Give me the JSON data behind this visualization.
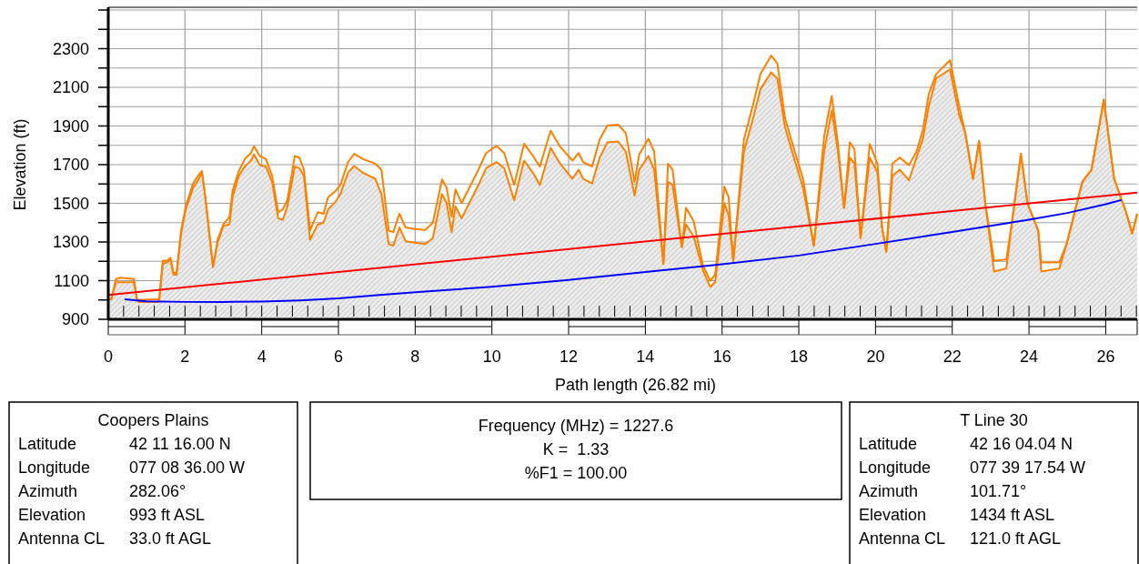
{
  "chart_data": {
    "type": "line",
    "xlabel": "Path length (26.82 mi)",
    "ylabel": "Elevation (ft)",
    "xlim": [
      0,
      26.82
    ],
    "ylim": [
      900,
      2500
    ],
    "xticks": [
      0,
      2,
      4,
      6,
      8,
      10,
      12,
      14,
      16,
      18,
      20,
      22,
      24,
      26
    ],
    "yticks": [
      900,
      {
        "value": 1000,
        "label": null
      },
      1100,
      {
        "value": 1200,
        "label": null
      },
      1300,
      {
        "value": 1400,
        "label": null
      },
      1500,
      {
        "value": 1600,
        "label": null
      },
      1700,
      {
        "value": 1800,
        "label": null
      },
      1900,
      {
        "value": 2000,
        "label": null
      },
      2100,
      {
        "value": 2200,
        "label": null
      },
      2300,
      {
        "value": 2400,
        "label": null
      },
      {
        "value": 2500,
        "label": null
      }
    ],
    "grid": true,
    "marker": "none",
    "line_style": "solid",
    "x": [
      0,
      0.08,
      0.2,
      0.32,
      0.67,
      0.75,
      0.79,
      1.3,
      1.33,
      1.42,
      1.54,
      1.62,
      1.7,
      1.78,
      1.9,
      2.02,
      2.21,
      2.37,
      2.44,
      2.53,
      2.73,
      2.85,
      3.0,
      3.16,
      3.24,
      3.4,
      3.56,
      3.72,
      3.8,
      3.95,
      4.11,
      4.27,
      4.43,
      4.55,
      4.67,
      4.86,
      4.98,
      5.1,
      5.26,
      5.46,
      5.61,
      5.73,
      5.93,
      6.05,
      6.25,
      6.41,
      6.64,
      6.96,
      7.12,
      7.31,
      7.43,
      7.59,
      7.75,
      7.99,
      8.26,
      8.46,
      8.7,
      8.82,
      8.95,
      9.05,
      9.21,
      9.41,
      9.65,
      9.85,
      10.12,
      10.32,
      10.58,
      10.84,
      11.07,
      11.25,
      11.53,
      11.78,
      12.1,
      12.26,
      12.38,
      12.61,
      12.81,
      13.01,
      13.29,
      13.49,
      13.72,
      13.84,
      14.08,
      14.23,
      14.47,
      14.59,
      14.71,
      14.95,
      15.06,
      15.26,
      15.5,
      15.69,
      15.82,
      16.06,
      16.17,
      16.29,
      16.57,
      16.81,
      17.0,
      17.28,
      17.44,
      17.64,
      17.87,
      18.11,
      18.39,
      18.66,
      18.86,
      19.02,
      19.18,
      19.33,
      19.45,
      19.61,
      19.85,
      20.05,
      20.17,
      20.28,
      20.44,
      20.63,
      20.87,
      21.07,
      21.23,
      21.39,
      21.58,
      21.94,
      22.18,
      22.34,
      22.54,
      22.7,
      22.86,
      23.09,
      23.41,
      23.57,
      23.79,
      23.96,
      24.24,
      24.32,
      24.79,
      24.99,
      25.39,
      25.63,
      25.95,
      26.22,
      26.53,
      26.69,
      26.82
    ],
    "series": [
      {
        "type": "area",
        "color": "#ff8000",
        "values": [
          1005,
          1005,
          1092,
          1092,
          1092,
          997,
          990,
          990,
          1000,
          1186,
          1195,
          1210,
          1131,
          1131,
          1344,
          1469,
          1580,
          1627,
          1666,
          1532,
          1170,
          1296,
          1383,
          1391,
          1532,
          1642,
          1690,
          1721,
          1753,
          1698,
          1690,
          1611,
          1422,
          1414,
          1485,
          1690,
          1682,
          1642,
          1312,
          1391,
          1399,
          1469,
          1509,
          1548,
          1658,
          1693,
          1658,
          1627,
          1548,
          1289,
          1281,
          1375,
          1304,
          1296,
          1289,
          1320,
          1548,
          1501,
          1351,
          1485,
          1422,
          1501,
          1595,
          1682,
          1713,
          1682,
          1517,
          1721,
          1658,
          1595,
          1787,
          1705,
          1627,
          1674,
          1627,
          1603,
          1737,
          1815,
          1820,
          1768,
          1540,
          1674,
          1745,
          1674,
          1186,
          1611,
          1595,
          1273,
          1391,
          1328,
          1155,
          1068,
          1092,
          1501,
          1438,
          1202,
          1768,
          1941,
          2091,
          2177,
          2146,
          1894,
          1737,
          1580,
          1281,
          1768,
          1981,
          1768,
          1477,
          1737,
          1705,
          1320,
          1737,
          1658,
          1375,
          1249,
          1642,
          1674,
          1619,
          1737,
          1831,
          2004,
          2146,
          2193,
          1957,
          1863,
          1627,
          1823,
          1501,
          1147,
          1163,
          1422,
          1756,
          1501,
          1359,
          1147,
          1163,
          1296,
          1611,
          1674,
          2036,
          1627,
          1454,
          1344,
          1446
        ]
      },
      {
        "color": "#ff8000",
        "values": [
          1005,
          1005,
          1108,
          1115,
          1108,
          1005,
          1000,
          1005,
          1010,
          1202,
          1205,
          1218,
          1140,
          1140,
          1360,
          1485,
          1603,
          1650,
          1666,
          1532,
          1170,
          1312,
          1391,
          1430,
          1564,
          1666,
          1729,
          1760,
          1795,
          1745,
          1729,
          1642,
          1454,
          1469,
          1517,
          1745,
          1737,
          1674,
          1359,
          1454,
          1446,
          1532,
          1564,
          1595,
          1713,
          1756,
          1729,
          1705,
          1674,
          1359,
          1351,
          1446,
          1375,
          1367,
          1362,
          1399,
          1624,
          1580,
          1430,
          1572,
          1501,
          1580,
          1674,
          1760,
          1797,
          1760,
          1595,
          1808,
          1745,
          1690,
          1875,
          1792,
          1721,
          1760,
          1713,
          1690,
          1831,
          1902,
          1907,
          1863,
          1611,
          1753,
          1834,
          1768,
          1186,
          1705,
          1674,
          1273,
          1477,
          1407,
          1178,
          1100,
          1131,
          1587,
          1532,
          1202,
          1831,
          2012,
          2169,
          2264,
          2224,
          1941,
          1784,
          1627,
          1281,
          1847,
          2055,
          1808,
          1477,
          1816,
          1780,
          1320,
          1807,
          1705,
          1375,
          1249,
          1705,
          1737,
          1697,
          1768,
          1878,
          2067,
          2169,
          2240,
          2004,
          1863,
          1627,
          1823,
          1501,
          1202,
          1210,
          1422,
          1756,
          1501,
          1359,
          1194,
          1194,
          1296,
          1611,
          1674,
          2036,
          1627,
          1454,
          1344,
          1446
        ]
      },
      {
        "color": "#ff0000",
        "x": [
          0,
          26.82
        ],
        "values": [
          1026,
          1555
        ]
      },
      {
        "color": "#0000ff",
        "x": [
          0.43,
          1,
          2,
          3,
          4,
          5,
          6,
          7,
          8,
          10,
          12,
          14,
          16,
          18,
          20,
          22,
          24,
          25,
          26,
          26.41
        ],
        "values": [
          1003,
          993,
          990,
          990,
          992,
          998,
          1008,
          1025,
          1040,
          1068,
          1103,
          1145,
          1185,
          1230,
          1290,
          1352,
          1415,
          1450,
          1495,
          1517
        ]
      }
    ],
    "annotations": [
      "Coopers Plains\nLatitude\t42 11 16.00 N\nLongitude\t077 08 36.00 W\nAzimuth\t282.06°\nElevation\t993 ft ASL\nAntenna CL\t33.0 ft AGL",
      "Frequency (MHz) = 1227.6\nK =  1.33\n%F1 = 100.00",
      "T Line 30\nLatitude\t42 16 04.04 N\nLongitude\t077 39 17.54 W\nAzimuth\t101.71°\nElevation\t1434 ft ASL\nAntenna CL\t121.0 ft AGL"
    ]
  }
}
